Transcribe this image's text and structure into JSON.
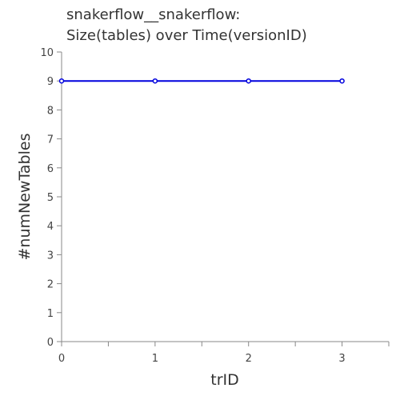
{
  "chart_data": {
    "type": "line",
    "title_lines": [
      "snakerflow__snakerflow:",
      "Size(tables) over Time(versionID)"
    ],
    "xlabel": "trID",
    "ylabel": "#numNewTables",
    "xlim": [
      0,
      3.5
    ],
    "ylim": [
      0,
      10
    ],
    "x_ticks": [
      0,
      1,
      2,
      3
    ],
    "x_minor_ticks": [
      0.5,
      1.5,
      2.5,
      3.5
    ],
    "y_ticks": [
      0,
      1,
      2,
      3,
      4,
      5,
      6,
      7,
      8,
      9,
      10
    ],
    "grid": false,
    "series": [
      {
        "name": "numNewTables",
        "color": "#0000dd",
        "x": [
          0,
          1,
          2,
          3
        ],
        "y": [
          9,
          9,
          9,
          9
        ]
      }
    ]
  }
}
